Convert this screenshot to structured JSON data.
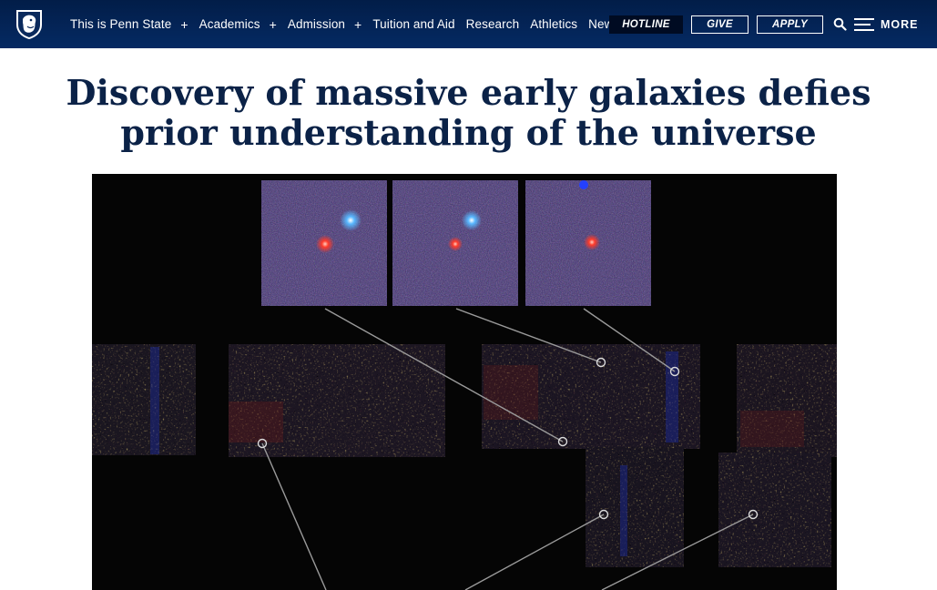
{
  "nav": {
    "items": [
      {
        "label": "This is Penn State",
        "expandable": true
      },
      {
        "label": "Academics",
        "expandable": true
      },
      {
        "label": "Admission",
        "expandable": true
      },
      {
        "label": "Tuition and Aid",
        "expandable": false
      },
      {
        "label": "Research",
        "expandable": false
      },
      {
        "label": "Athletics",
        "expandable": false
      },
      {
        "label": "News",
        "expandable": true
      }
    ],
    "plus_symbol": "+",
    "buttons": {
      "hotline": "HOTLINE",
      "give": "GIVE",
      "apply": "APPLY"
    },
    "more_label": "MORE",
    "icons": {
      "logo": "penn-state-shield-icon",
      "search": "search-icon",
      "menu": "hamburger-icon"
    },
    "colors": {
      "nav_bg": "#041e42",
      "hotline_bg": "#000b22"
    }
  },
  "article": {
    "title": "Discovery of massive early galaxies defies prior understanding of the universe",
    "title_color": "#0b2247",
    "image": "galaxy-candidates-image"
  }
}
